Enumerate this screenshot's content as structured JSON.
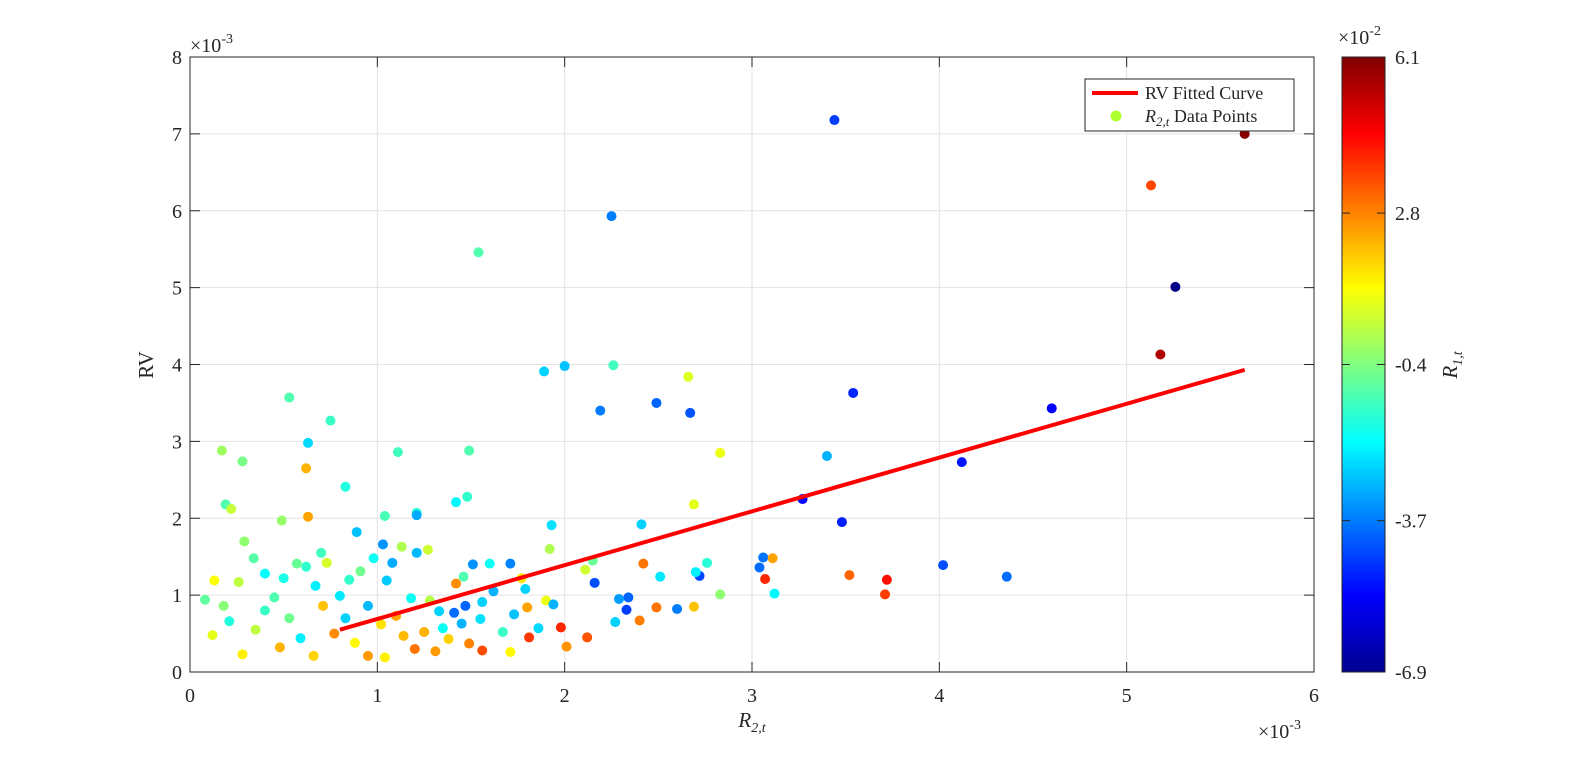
{
  "chart_data": {
    "type": "scatter",
    "xlabel_main": "R",
    "xlabel_sub": "2,t",
    "ylabel": "RV",
    "x_exponent": "×10",
    "x_exponent_power": "-3",
    "y_exponent": "×10",
    "y_exponent_power": "-3",
    "xlim": [
      0,
      6
    ],
    "ylim": [
      0,
      8
    ],
    "x_ticks": [
      "0",
      "1",
      "2",
      "3",
      "4",
      "5",
      "6"
    ],
    "y_ticks": [
      "0",
      "1",
      "2",
      "3",
      "4",
      "5",
      "6",
      "7",
      "8"
    ],
    "grid": true,
    "legend": {
      "placement": "top-right",
      "line_label": "RV Fitted Curve",
      "points_label_main": "R",
      "points_label_sub": "2,t",
      "points_label_rest": " Data Points"
    },
    "colorbar": {
      "label_main": "R",
      "label_sub": "1,t",
      "exponent": "×10",
      "exponent_power": "-2",
      "min": -6.9,
      "max": 6.1,
      "ticks": [
        "6.1",
        "2.8",
        "-0.4",
        "-3.7",
        "-6.9"
      ],
      "colormap": "jet"
    },
    "fitted_line": {
      "name": "RV Fitted Curve",
      "color": "#ff0000",
      "x": [
        0.8,
        5.63
      ],
      "y": [
        0.55,
        3.93
      ]
    },
    "series": [
      {
        "name": "R2,t Data Points",
        "points": [
          [
            3.44,
            7.18,
            -4.5
          ],
          [
            5.63,
            7.0,
            6.0
          ],
          [
            5.13,
            6.33,
            3.6
          ],
          [
            2.25,
            5.93,
            -3.7
          ],
          [
            1.54,
            5.46,
            -1.0
          ],
          [
            5.26,
            5.01,
            -6.8
          ],
          [
            5.18,
            4.13,
            5.5
          ],
          [
            1.89,
            3.91,
            -2.6
          ],
          [
            2.0,
            3.98,
            -2.8
          ],
          [
            2.26,
            3.99,
            -1.2
          ],
          [
            2.66,
            3.84,
            0.8
          ],
          [
            3.54,
            3.63,
            -4.8
          ],
          [
            2.19,
            3.4,
            -3.7
          ],
          [
            2.49,
            3.5,
            -4.0
          ],
          [
            2.67,
            3.37,
            -4.2
          ],
          [
            4.6,
            3.43,
            -5.3
          ],
          [
            3.4,
            2.81,
            -3.0
          ],
          [
            4.12,
            2.73,
            -5.0
          ],
          [
            3.27,
            2.25,
            -5.2
          ],
          [
            3.48,
            1.95,
            -4.9
          ],
          [
            2.83,
            2.85,
            1.0
          ],
          [
            2.69,
            2.18,
            0.9
          ],
          [
            0.53,
            3.57,
            -1.0
          ],
          [
            0.75,
            3.27,
            -1.3
          ],
          [
            0.63,
            2.98,
            -2.5
          ],
          [
            1.11,
            2.86,
            -1.2
          ],
          [
            1.49,
            2.88,
            -1.0
          ],
          [
            0.17,
            2.88,
            0.0
          ],
          [
            0.28,
            2.74,
            -0.5
          ],
          [
            0.62,
            2.65,
            2.2
          ],
          [
            0.83,
            2.41,
            -1.6
          ],
          [
            1.42,
            2.21,
            -2.1
          ],
          [
            1.48,
            2.28,
            -1.4
          ],
          [
            0.19,
            2.18,
            -1.0
          ],
          [
            0.22,
            2.12,
            0.5
          ],
          [
            0.63,
            2.02,
            2.4
          ],
          [
            1.04,
            2.03,
            -1.1
          ],
          [
            1.21,
            2.07,
            -1.5
          ],
          [
            1.21,
            2.04,
            -3.1
          ],
          [
            0.29,
            1.7,
            -0.2
          ],
          [
            0.49,
            1.97,
            -0.1
          ],
          [
            0.89,
            1.82,
            -2.8
          ],
          [
            1.03,
            1.66,
            -3.4
          ],
          [
            1.93,
            1.91,
            -2.4
          ],
          [
            1.92,
            1.6,
            0.2
          ],
          [
            1.27,
            1.59,
            0.6
          ],
          [
            1.13,
            1.63,
            0.2
          ],
          [
            1.21,
            1.55,
            -2.9
          ],
          [
            2.41,
            1.92,
            -2.6
          ],
          [
            3.06,
            1.49,
            -3.8
          ],
          [
            3.11,
            1.48,
            2.4
          ],
          [
            3.04,
            1.36,
            -3.9
          ],
          [
            3.07,
            1.21,
            4.0
          ],
          [
            3.52,
            1.26,
            3.2
          ],
          [
            3.72,
            1.2,
            4.3
          ],
          [
            3.71,
            1.01,
            3.7
          ],
          [
            4.02,
            1.39,
            -4.3
          ],
          [
            4.36,
            1.24,
            -3.9
          ],
          [
            3.12,
            1.02,
            -2.1
          ],
          [
            2.72,
            1.25,
            -4.4
          ],
          [
            2.42,
            1.41,
            3.0
          ],
          [
            2.16,
            1.16,
            -4.3
          ],
          [
            2.83,
            1.01,
            -0.2
          ],
          [
            2.69,
            0.85,
            2.0
          ],
          [
            2.6,
            0.82,
            -3.7
          ],
          [
            2.49,
            0.84,
            3.0
          ],
          [
            2.34,
            0.97,
            -4.0
          ],
          [
            2.29,
            0.95,
            -3.3
          ],
          [
            2.33,
            0.81,
            -4.5
          ],
          [
            2.4,
            0.67,
            2.9
          ],
          [
            2.27,
            0.65,
            -2.6
          ],
          [
            2.12,
            0.45,
            3.4
          ],
          [
            2.01,
            0.33,
            2.6
          ],
          [
            1.98,
            0.58,
            4.0
          ],
          [
            2.11,
            1.33,
            0.6
          ],
          [
            2.15,
            1.45,
            -0.7
          ],
          [
            1.79,
            1.08,
            -2.6
          ],
          [
            1.8,
            0.84,
            2.4
          ],
          [
            1.81,
            0.45,
            3.8
          ],
          [
            1.77,
            1.22,
            1.5
          ],
          [
            1.71,
            1.41,
            -3.6
          ],
          [
            1.6,
            1.41,
            -1.9
          ],
          [
            1.51,
            1.4,
            -3.4
          ],
          [
            1.62,
            1.05,
            -3.0
          ],
          [
            1.56,
            0.91,
            -2.6
          ],
          [
            1.47,
            0.86,
            -4.0
          ],
          [
            1.41,
            0.77,
            -3.9
          ],
          [
            1.38,
            0.43,
            1.8
          ],
          [
            1.49,
            0.37,
            2.8
          ],
          [
            1.56,
            0.28,
            3.5
          ],
          [
            1.71,
            0.26,
            1.3
          ],
          [
            1.67,
            0.52,
            -1.3
          ],
          [
            1.73,
            0.75,
            -2.8
          ],
          [
            2.7,
            1.3,
            -2.2
          ],
          [
            2.51,
            1.24,
            -2.3
          ],
          [
            2.76,
            1.42,
            -1.5
          ],
          [
            1.86,
            0.57,
            -2.5
          ],
          [
            1.9,
            0.93,
            1.0
          ],
          [
            1.94,
            0.88,
            -3.0
          ],
          [
            1.25,
            0.52,
            2.2
          ],
          [
            1.28,
            0.93,
            0.3
          ],
          [
            1.33,
            0.79,
            -2.6
          ],
          [
            1.42,
            1.15,
            2.7
          ],
          [
            1.46,
            1.24,
            -1.0
          ],
          [
            1.18,
            0.96,
            -1.9
          ],
          [
            1.1,
            0.73,
            2.4
          ],
          [
            1.05,
            1.19,
            -2.7
          ],
          [
            1.08,
            1.42,
            -3.1
          ],
          [
            0.98,
            1.48,
            -1.9
          ],
          [
            0.91,
            1.31,
            -0.6
          ],
          [
            0.85,
            1.2,
            -1.4
          ],
          [
            0.7,
            1.55,
            -1.2
          ],
          [
            0.73,
            1.42,
            0.7
          ],
          [
            0.62,
            1.37,
            -1.4
          ],
          [
            0.57,
            1.41,
            -0.7
          ],
          [
            0.5,
            1.22,
            -1.7
          ],
          [
            0.34,
            1.48,
            -0.9
          ],
          [
            0.4,
            1.28,
            -2.0
          ],
          [
            0.26,
            1.17,
            0.4
          ],
          [
            0.13,
            1.19,
            1.2
          ],
          [
            0.18,
            0.86,
            -0.3
          ],
          [
            0.08,
            0.94,
            -0.8
          ],
          [
            0.45,
            0.97,
            -1.0
          ],
          [
            0.67,
            1.12,
            -2.2
          ],
          [
            0.8,
            0.99,
            -2.3
          ],
          [
            0.95,
            0.86,
            -2.9
          ],
          [
            1.02,
            0.62,
            1.6
          ],
          [
            1.14,
            0.47,
            2.1
          ],
          [
            1.2,
            0.3,
            3.0
          ],
          [
            1.31,
            0.27,
            2.5
          ],
          [
            0.88,
            0.38,
            1.3
          ],
          [
            0.77,
            0.5,
            2.7
          ],
          [
            0.53,
            0.7,
            -0.6
          ],
          [
            0.35,
            0.55,
            0.4
          ],
          [
            0.21,
            0.66,
            -1.6
          ],
          [
            0.12,
            0.48,
            0.9
          ],
          [
            0.28,
            0.23,
            1.4
          ],
          [
            0.48,
            0.32,
            2.2
          ],
          [
            0.66,
            0.21,
            1.8
          ],
          [
            0.95,
            0.21,
            2.5
          ],
          [
            1.04,
            0.19,
            1.4
          ],
          [
            0.59,
            0.44,
            -2.2
          ],
          [
            0.4,
            0.8,
            -1.3
          ],
          [
            0.83,
            0.7,
            -2.6
          ],
          [
            0.71,
            0.86,
            2.0
          ],
          [
            1.35,
            0.57,
            -1.9
          ],
          [
            1.45,
            0.63,
            -3.0
          ],
          [
            1.55,
            0.69,
            -2.4
          ]
        ]
      }
    ]
  }
}
